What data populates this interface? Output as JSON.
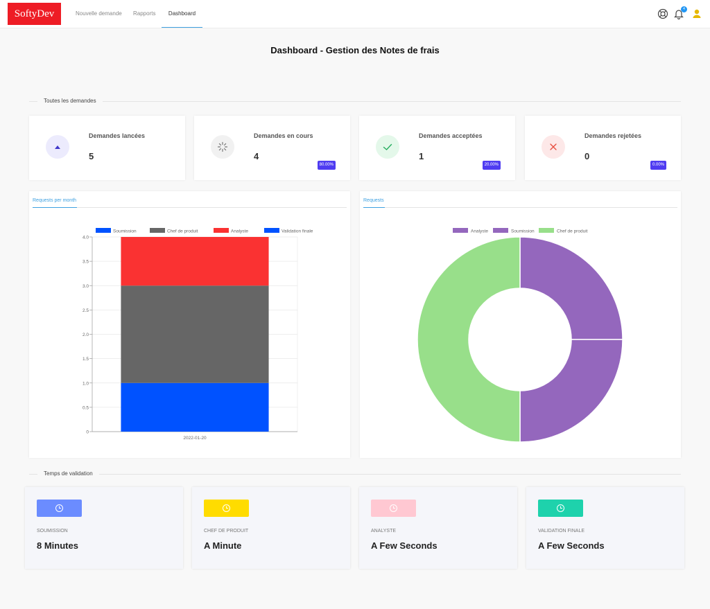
{
  "navbar": {
    "brand": "SoftyDev",
    "items": [
      {
        "label": "Nouvelle demande"
      },
      {
        "label": "Rapports"
      },
      {
        "label": "Dashboard"
      }
    ],
    "notification_count": "4",
    "icons": [
      "lifebuoy-icon",
      "bell-icon",
      "user-icon"
    ]
  },
  "page": {
    "title": "Dashboard - Gestion des Notes de frais"
  },
  "sections": {
    "all_requests": "Toutes les demandes",
    "validation_time": "Temps de validation"
  },
  "stats": [
    {
      "label": "Demandes lancées",
      "value": "5",
      "percent": "",
      "icon": "triangle-up-icon",
      "color": "#3f37c9",
      "bg": "#ecebfd"
    },
    {
      "label": "Demandes en cours",
      "value": "4",
      "percent": "80.00%",
      "icon": "spinner-icon",
      "color": "#777777",
      "bg": "#f1f1f1"
    },
    {
      "label": "Demandes acceptées",
      "value": "1",
      "percent": "20.00%",
      "icon": "check-icon",
      "color": "#27ae60",
      "bg": "#e4f8ea"
    },
    {
      "label": "Demandes rejetées",
      "value": "0",
      "percent": "0.00%",
      "icon": "close-icon",
      "color": "#e74c3c",
      "bg": "#fde8e8"
    }
  ],
  "charts": {
    "bar_tab": "Requests per month",
    "donut_tab": "Requests"
  },
  "chart_data": [
    {
      "type": "bar",
      "stacked": true,
      "categories": [
        "2022-01-20"
      ],
      "series": [
        {
          "name": "Soumission",
          "color": "#0052ff",
          "values": [
            1
          ]
        },
        {
          "name": "Chef de produit",
          "color": "#666666",
          "values": [
            2
          ]
        },
        {
          "name": "Analyste",
          "color": "#fa3232",
          "values": [
            1
          ]
        },
        {
          "name": "Validation finale",
          "color": "#0052ff",
          "values": [
            0
          ]
        }
      ],
      "ylim": [
        0,
        4
      ],
      "yticks": [
        "0",
        "0.5",
        "1.0",
        "1.5",
        "2.0",
        "2.5",
        "3.0",
        "3.5",
        "4.0"
      ],
      "legend": "top",
      "grid": true
    },
    {
      "type": "pie",
      "donut": true,
      "labels": [
        "Analyste",
        "Soumission",
        "Chef de produit"
      ],
      "values": [
        1,
        1,
        2
      ],
      "colors": [
        "#9467bd",
        "#9467bd",
        "#98df8a"
      ],
      "legend": "top"
    }
  ],
  "validation_times": [
    {
      "label": "Soumission",
      "value": "8 Minutes",
      "color": "#6b8cff"
    },
    {
      "label": "Chef de produit",
      "value": "A Minute",
      "color": "#ffdc00"
    },
    {
      "label": "Analyste",
      "value": "A Few Seconds",
      "color": "#ffc8d2"
    },
    {
      "label": "Validation finale",
      "value": "A Few Seconds",
      "color": "#1ed2ac"
    }
  ]
}
